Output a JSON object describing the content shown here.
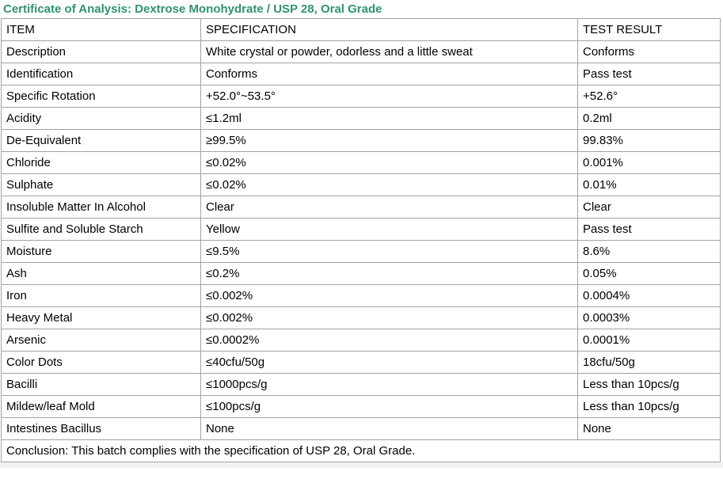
{
  "title": "Certificate of Analysis: Dextrose Monohydrate / USP 28, Oral Grade",
  "colors": {
    "title": "#2e9370",
    "border": "#a2a2a2"
  },
  "table": {
    "headers": [
      "ITEM",
      "SPECIFICATION",
      "TEST RESULT"
    ],
    "rows": [
      [
        "Description",
        "White crystal or powder, odorless and a little sweat",
        "Conforms"
      ],
      [
        "Identification",
        "Conforms",
        "Pass test"
      ],
      [
        "Specific Rotation",
        "+52.0°~53.5°",
        "+52.6°"
      ],
      [
        "Acidity",
        "≤1.2ml",
        "0.2ml"
      ],
      [
        "De-Equivalent",
        "≥99.5%",
        "99.83%"
      ],
      [
        "Chloride",
        "≤0.02%",
        "0.001%"
      ],
      [
        "Sulphate",
        "≤0.02%",
        "0.01%"
      ],
      [
        "Insoluble Matter In Alcohol",
        "Clear",
        "Clear"
      ],
      [
        "Sulfite and Soluble Starch",
        "Yellow",
        "Pass test"
      ],
      [
        "Moisture",
        "≤9.5%",
        "8.6%"
      ],
      [
        "Ash",
        "≤0.2%",
        "0.05%"
      ],
      [
        "Iron",
        "≤0.002%",
        "0.0004%"
      ],
      [
        "Heavy Metal",
        "≤0.002%",
        "0.0003%"
      ],
      [
        "Arsenic",
        "≤0.0002%",
        "0.0001%"
      ],
      [
        "Color Dots",
        "≤40cfu/50g",
        "18cfu/50g"
      ],
      [
        "Bacilli",
        "≤1000pcs/g",
        "Less than 10pcs/g"
      ],
      [
        "Mildew/leaf Mold",
        "≤100pcs/g",
        "Less than 10pcs/g"
      ],
      [
        "Intestines Bacillus",
        "None",
        "None"
      ]
    ],
    "conclusion": "Conclusion: This batch complies with the specification of USP 28, Oral Grade."
  }
}
